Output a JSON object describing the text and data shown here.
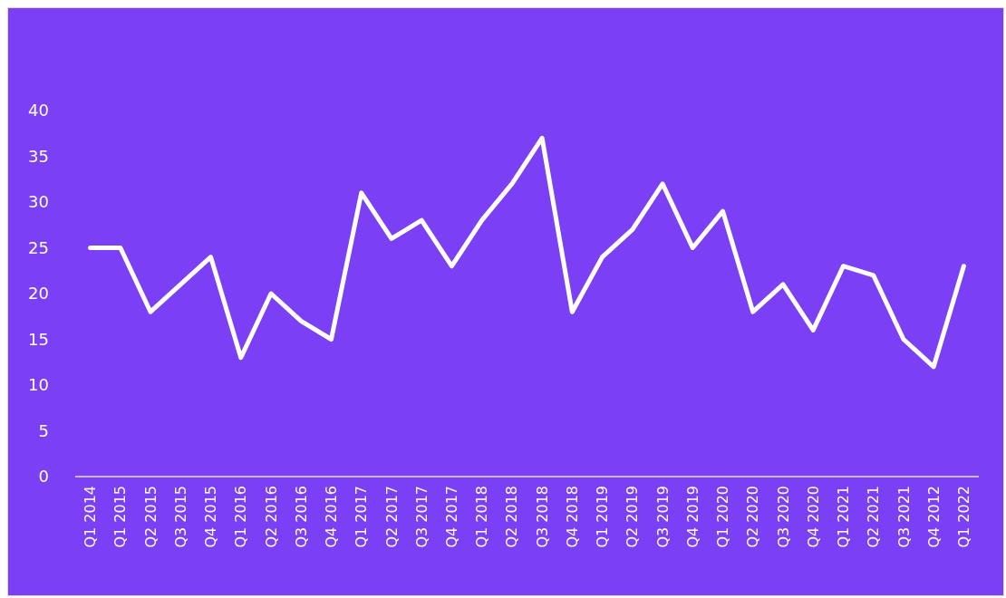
{
  "chart_data": {
    "type": "line",
    "categories": [
      "Q1 2014",
      "Q1 2015",
      "Q2 2015",
      "Q3 2015",
      "Q4 2015",
      "Q1 2016",
      "Q2 2016",
      "Q3 2016",
      "Q4 2016",
      "Q1 2017",
      "Q2 2017",
      "Q3 2017",
      "Q4 2017",
      "Q1 2018",
      "Q2 2018",
      "Q3 2018",
      "Q4 2018",
      "Q1 2019",
      "Q2 2019",
      "Q3 2019",
      "Q4 2019",
      "Q1 2020",
      "Q2 2020",
      "Q3 2020",
      "Q4 2020",
      "Q1 2021",
      "Q2 2021",
      "Q3 2021",
      "Q4 2012",
      "Q1 2022"
    ],
    "series": [
      {
        "color": "#ffffff",
        "values": [
          25,
          25,
          18,
          21,
          24,
          13,
          20,
          17,
          15,
          31,
          26,
          28,
          23,
          28,
          32,
          37,
          18,
          24,
          27,
          32,
          25,
          29,
          18,
          21,
          16,
          23,
          22,
          15,
          12,
          23
        ]
      }
    ],
    "ylim": [
      0,
      40
    ],
    "yticks": [
      0,
      5,
      10,
      15,
      20,
      25,
      30,
      35,
      40
    ],
    "marker": "none",
    "line_style": "solid"
  }
}
